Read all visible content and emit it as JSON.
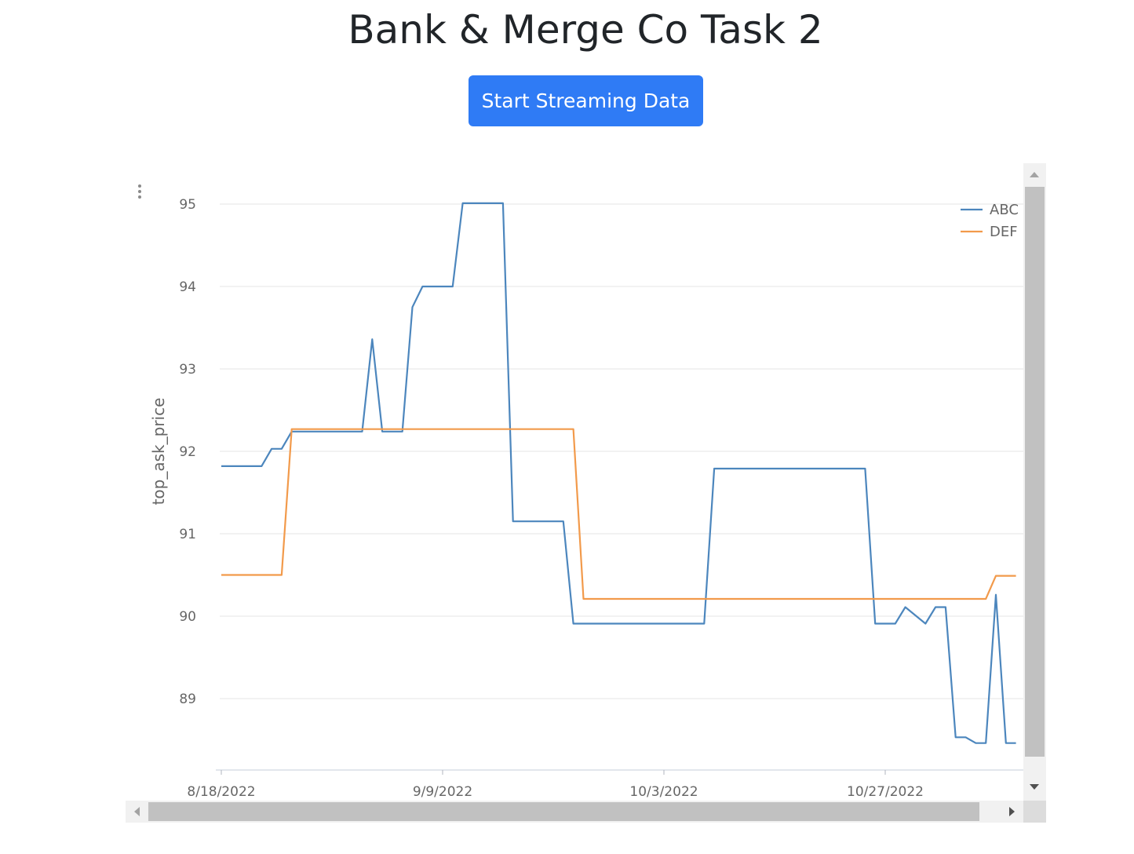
{
  "page": {
    "title": "Bank & Merge Co Task 2",
    "button_label": "Start Streaming Data"
  },
  "colors": {
    "button": "#2f7bf5",
    "abc": "#4c86bd",
    "def": "#f29a4b",
    "grid": "#e6e6e6",
    "axis_text": "#666666"
  },
  "icons": [
    "more-vertical-icon",
    "scroll-up-arrow-icon",
    "scroll-down-arrow-icon",
    "scroll-left-arrow-icon",
    "scroll-right-arrow-icon"
  ],
  "chart_data": {
    "type": "line",
    "title": "",
    "xlabel": "",
    "ylabel": "top_ask_price",
    "x_ticks": [
      "8/18/2022",
      "9/9/2022",
      "10/3/2022",
      "10/27/2022"
    ],
    "y_ticks": [
      89,
      90,
      91,
      92,
      93,
      94,
      95
    ],
    "ylim": [
      88.1,
      95.2
    ],
    "xlim": [
      "2022-08-18",
      "2022-11-14"
    ],
    "grid": true,
    "legend_position": "top-right",
    "series": [
      {
        "name": "ABC",
        "points": [
          [
            "2022-08-18",
            91.82
          ],
          [
            "2022-08-22",
            91.82
          ],
          [
            "2022-08-23",
            92.03
          ],
          [
            "2022-08-24",
            92.03
          ],
          [
            "2022-08-25",
            92.24
          ],
          [
            "2022-09-01",
            92.24
          ],
          [
            "2022-09-02",
            93.36
          ],
          [
            "2022-09-03",
            92.24
          ],
          [
            "2022-09-05",
            92.24
          ],
          [
            "2022-09-06",
            93.75
          ],
          [
            "2022-09-07",
            94.0
          ],
          [
            "2022-09-10",
            94.0
          ],
          [
            "2022-09-11",
            95.01
          ],
          [
            "2022-09-15",
            95.01
          ],
          [
            "2022-09-16",
            91.15
          ],
          [
            "2022-09-21",
            91.15
          ],
          [
            "2022-09-22",
            89.91
          ],
          [
            "2022-10-05",
            89.91
          ],
          [
            "2022-10-06",
            91.79
          ],
          [
            "2022-10-21",
            91.79
          ],
          [
            "2022-10-22",
            89.91
          ],
          [
            "2022-10-24",
            89.91
          ],
          [
            "2022-10-25",
            90.11
          ],
          [
            "2022-10-27",
            89.91
          ],
          [
            "2022-10-28",
            90.11
          ],
          [
            "2022-10-29",
            90.11
          ],
          [
            "2022-10-30",
            88.53
          ],
          [
            "2022-10-31",
            88.53
          ],
          [
            "2022-11-01",
            88.46
          ],
          [
            "2022-11-02",
            88.46
          ],
          [
            "2022-11-03",
            90.26
          ],
          [
            "2022-11-04",
            88.46
          ],
          [
            "2022-11-05",
            88.46
          ]
        ]
      },
      {
        "name": "DEF",
        "points": [
          [
            "2022-08-18",
            90.5
          ],
          [
            "2022-08-24",
            90.5
          ],
          [
            "2022-08-25",
            92.27
          ],
          [
            "2022-09-22",
            92.27
          ],
          [
            "2022-09-23",
            90.21
          ],
          [
            "2022-11-02",
            90.21
          ],
          [
            "2022-11-03",
            90.49
          ],
          [
            "2022-11-05",
            90.49
          ]
        ]
      }
    ]
  }
}
